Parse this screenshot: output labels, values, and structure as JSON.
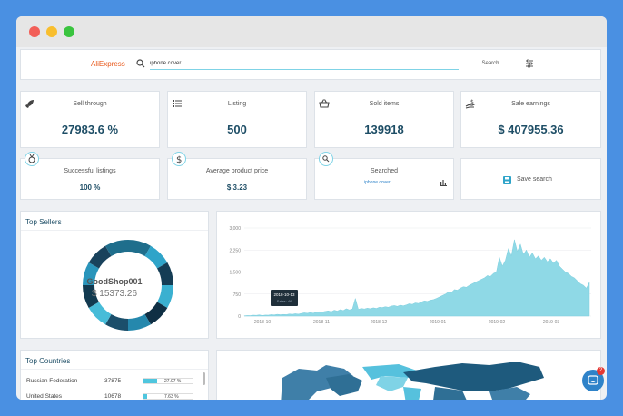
{
  "window": {
    "controls": [
      "close",
      "minimize",
      "maximize"
    ]
  },
  "search": {
    "logo": "AliExpress",
    "query": "iphone cover",
    "button": "Search"
  },
  "stats": {
    "sell_through": {
      "label": "Sell through",
      "value": "27983.6 %"
    },
    "listing": {
      "label": "Listing",
      "value": "500"
    },
    "sold_items": {
      "label": "Sold items",
      "value": "139918"
    },
    "sale_earnings": {
      "label": "Sale earnings",
      "value": "$ 407955.36"
    },
    "successful_listings": {
      "label": "Successful listings",
      "value": "100 %"
    },
    "avg_price": {
      "label": "Average product price",
      "value": "$ 3.23"
    },
    "searched": {
      "label": "Searched",
      "value": "iphone cover"
    },
    "save_search": {
      "label": "Save search"
    }
  },
  "top_sellers": {
    "title": "Top Sellers",
    "center_name": "GoodShop001",
    "center_value": "$ 15373.26"
  },
  "chart_data": {
    "type": "area",
    "x_ticks": [
      "2018-10",
      "2018-11",
      "2018-12",
      "2019-01",
      "2019-02",
      "2019-03"
    ],
    "y_ticks": [
      "0",
      "750",
      "1,500",
      "2,250",
      "3,000"
    ],
    "ylim": [
      0,
      3000
    ],
    "color": "#8fd9e6",
    "tooltip": {
      "date": "2018-10-13",
      "text": "Sales: 46"
    },
    "series": [
      {
        "values": [
          10,
          20,
          15,
          30,
          25,
          40,
          20,
          35,
          30,
          50,
          40,
          60,
          45,
          55,
          50,
          70,
          60,
          80,
          65,
          90,
          110,
          95,
          120,
          100,
          130,
          150,
          140,
          160,
          180,
          150,
          200,
          170,
          220,
          190,
          250,
          210,
          240,
          600,
          230,
          260,
          240,
          270,
          250,
          280,
          260,
          300,
          290,
          320,
          300,
          340,
          360,
          330,
          370,
          350,
          380,
          420,
          400,
          450,
          430,
          480,
          520,
          500,
          540,
          560,
          600,
          650,
          700,
          750,
          820,
          800,
          900,
          880,
          950,
          1000,
          980,
          1050,
          1100,
          1150,
          1200,
          1250,
          1300,
          1380,
          1350,
          1450,
          1500,
          2000,
          1700,
          1900,
          2300,
          2050,
          2600,
          2200,
          2450,
          2100,
          2250,
          2000,
          2150,
          1950,
          2050,
          1900,
          2000,
          1850,
          1950,
          1800,
          1900,
          1700,
          1600,
          1500,
          1450,
          1350,
          1300,
          1200,
          1100,
          1050,
          950,
          1150
        ]
      }
    ]
  },
  "top_countries": {
    "title": "Top Countries",
    "rows": [
      {
        "country": "Russian Federation",
        "count": "37875",
        "pct": "27.07 %",
        "fill": 0.2707
      },
      {
        "country": "United States",
        "count": "10678",
        "pct": "7.63 %",
        "fill": 0.0763
      }
    ]
  },
  "chat": {
    "badge": "2"
  }
}
